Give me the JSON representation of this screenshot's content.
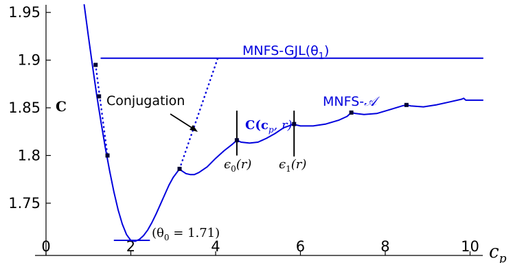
{
  "chart_data": {
    "type": "line",
    "title": "",
    "xlabel": "c_p",
    "ylabel": "C",
    "xlim": [
      0,
      10.3
    ],
    "ylim": [
      1.706,
      1.958
    ],
    "x_ticks": [
      0,
      2,
      4,
      6,
      8,
      10
    ],
    "x_tick_labels": [
      "0",
      "2",
      "4",
      "6",
      "8",
      "10"
    ],
    "y_ticks": [
      1.75,
      1.8,
      1.85,
      1.9,
      1.95
    ],
    "y_tick_labels": [
      "1.75",
      "1.8",
      "1.85",
      "1.9",
      "1.95"
    ],
    "grid": false,
    "colors": {
      "curve": "#0000dd",
      "axis": "#000000"
    },
    "series": [
      {
        "name": "MNFS-GJL(θ₁)",
        "style": "solid",
        "x": [
          1.3,
          10.3
        ],
        "y": [
          1.902,
          1.902
        ]
      },
      {
        "name": "MNFS-𝒜",
        "style": "solid",
        "x": [
          0.9,
          1.0,
          1.1,
          1.2,
          1.3,
          1.4,
          1.5,
          1.6,
          1.7,
          1.8,
          1.9,
          2.0,
          2.1,
          2.2,
          2.3,
          2.4,
          2.5,
          2.6,
          2.7,
          2.8,
          2.9,
          3.0,
          3.15,
          3.2,
          3.3,
          3.4,
          3.5,
          3.6,
          3.8,
          4.0,
          4.2,
          4.4,
          4.5,
          4.6,
          4.8,
          5.0,
          5.2,
          5.4,
          5.6,
          5.85,
          5.9,
          6.0,
          6.3,
          6.6,
          6.9,
          7.1,
          7.2,
          7.3,
          7.5,
          7.8,
          8.1,
          8.4,
          8.5,
          8.6,
          8.9,
          9.2,
          9.5,
          9.8,
          9.85,
          9.9,
          10.3
        ],
        "y": [
          1.958,
          1.925,
          1.893,
          1.862,
          1.834,
          1.808,
          1.784,
          1.762,
          1.743,
          1.728,
          1.717,
          1.711,
          1.71,
          1.712,
          1.716,
          1.722,
          1.73,
          1.739,
          1.749,
          1.759,
          1.769,
          1.777,
          1.786,
          1.784,
          1.781,
          1.78,
          1.78,
          1.782,
          1.788,
          1.797,
          1.805,
          1.812,
          1.816,
          1.814,
          1.813,
          1.814,
          1.818,
          1.823,
          1.829,
          1.833,
          1.832,
          1.831,
          1.831,
          1.833,
          1.837,
          1.841,
          1.845,
          1.844,
          1.843,
          1.844,
          1.848,
          1.852,
          1.853,
          1.852,
          1.851,
          1.853,
          1.856,
          1.859,
          1.86,
          1.858,
          1.858
        ]
      },
      {
        "name": "",
        "style": "dotted",
        "x": [
          1.17,
          1.45
        ],
        "y": [
          1.895,
          1.8
        ]
      },
      {
        "name": "",
        "style": "dotted",
        "x": [
          3.15,
          4.05
        ],
        "y": [
          1.786,
          1.902
        ]
      }
    ],
    "markers": {
      "x": [
        1.17,
        1.25,
        1.45,
        3.15,
        4.5,
        5.85,
        7.2,
        8.5
      ],
      "y": [
        1.895,
        1.862,
        1.8,
        1.786,
        1.816,
        1.833,
        1.845,
        1.853
      ]
    },
    "vertical_markers": [
      {
        "x": 4.5,
        "y_top": 1.847,
        "y_bottom": 1.8,
        "label": "ε0(r)"
      },
      {
        "x": 5.85,
        "y_top": 1.847,
        "y_bottom": 1.799,
        "label": "ε1(r)"
      }
    ],
    "min_line": {
      "x1": 1.6,
      "x2": 2.45,
      "y": 1.711,
      "label": "(θ0 = 1.71)"
    },
    "annotations": {
      "gjl_label": "MNFS-GJL(θ",
      "gjl_sub": "1",
      "a_label": "MNFS-",
      "a_symbol": "𝒜",
      "conjugation": "Conjugation",
      "c_label": "C(c",
      "c_sub": "p",
      "c_tail": ", r)",
      "eps0_label": "ϵ",
      "eps0_sub": "0",
      "eps0_tail": "(r)",
      "eps1_label": "ϵ",
      "eps1_sub": "1",
      "eps1_tail": "(r)",
      "theta_label": "(θ",
      "theta_sub": "0",
      "theta_tail": " = 1.71)"
    },
    "axis_labels": {
      "x": "c",
      "x_sub": "p",
      "y": "C"
    }
  }
}
